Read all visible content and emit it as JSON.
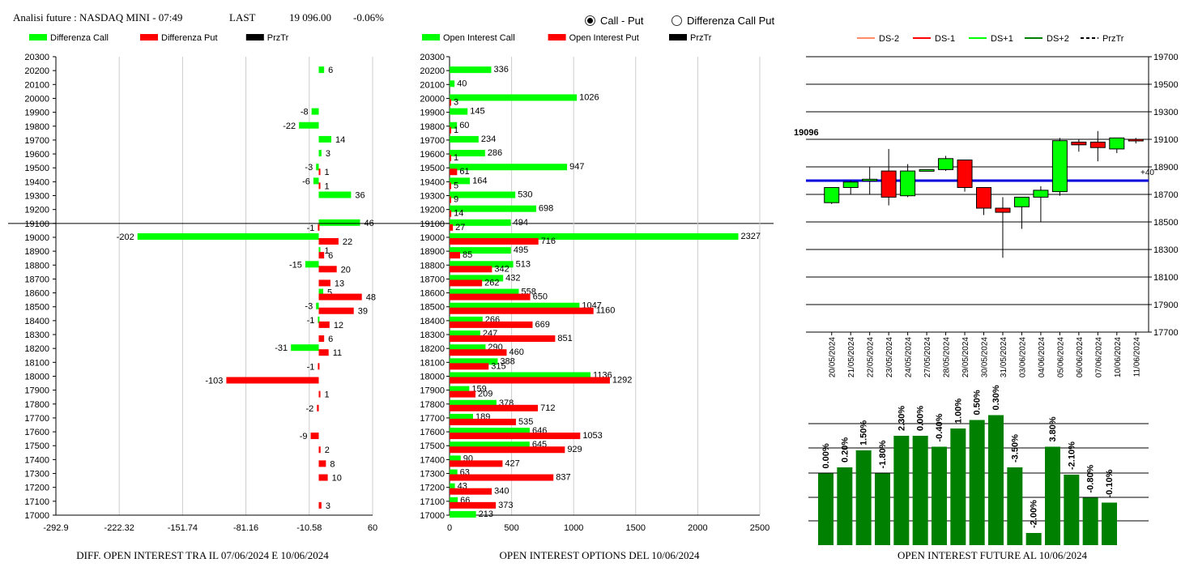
{
  "header": {
    "title": "Analisi future : NASDAQ MINI - 07:49",
    "last_label": "LAST",
    "last_value": "19 096.00",
    "change": "-0.06%"
  },
  "radio": {
    "option1": "Call - Put",
    "option2": "Differenza Call Put",
    "selected": 1
  },
  "colors": {
    "green": "#00ff00",
    "red": "#ff0000",
    "black": "#000000",
    "blue": "#0000dd",
    "darkgreen": "#008000"
  },
  "captions": {
    "left": "DIFF. OPEN INTEREST TRA IL 07/06/2024 E 10/06/2024",
    "middle": "OPEN INTEREST OPTIONS DEL 10/06/2024",
    "right": "OPEN INTEREST FUTURE AL 10/06/2024"
  },
  "chart_data": [
    {
      "type": "bar",
      "orientation": "horizontal",
      "legend": [
        "Differenza Call",
        "Differenza Put",
        "PrzTr"
      ],
      "categories": [
        "20300",
        "20200",
        "20100",
        "20000",
        "19900",
        "19800",
        "19700",
        "19600",
        "19500",
        "19400",
        "19300",
        "19200",
        "19100",
        "19000",
        "18900",
        "18800",
        "18700",
        "18600",
        "18500",
        "18400",
        "18300",
        "18200",
        "18100",
        "18000",
        "17900",
        "17800",
        "17700",
        "17600",
        "17500",
        "17400",
        "17300",
        "17200",
        "17100",
        "17000"
      ],
      "series": [
        {
          "name": "Differenza Call",
          "values": [
            null,
            6,
            null,
            null,
            -8,
            -22,
            14,
            3,
            -3,
            -6,
            36,
            null,
            46,
            -202,
            1,
            -15,
            null,
            5,
            -3,
            -1,
            null,
            -31,
            null,
            null,
            null,
            null,
            null,
            null,
            null,
            null,
            null,
            null,
            null,
            null
          ]
        },
        {
          "name": "Differenza Put",
          "values": [
            null,
            null,
            null,
            null,
            null,
            null,
            null,
            null,
            1,
            1,
            null,
            null,
            -1,
            22,
            6,
            20,
            13,
            48,
            39,
            12,
            6,
            11,
            -1,
            -103,
            1,
            -2,
            null,
            -9,
            2,
            8,
            10,
            null,
            3,
            null
          ]
        }
      ],
      "price_line": 19100,
      "xticks": [
        "-292.9",
        "-222.32",
        "-151.74",
        "-81.16",
        "-10.58",
        "60"
      ],
      "xlim": [
        -292.9,
        60
      ]
    },
    {
      "type": "bar",
      "orientation": "horizontal",
      "legend": [
        "Open Interest Call",
        "Open Interest Put",
        "PrzTr"
      ],
      "categories": [
        "20300",
        "20200",
        "20100",
        "20000",
        "19900",
        "19800",
        "19700",
        "19600",
        "19500",
        "19400",
        "19300",
        "19200",
        "19100",
        "19000",
        "18900",
        "18800",
        "18700",
        "18600",
        "18500",
        "18400",
        "18300",
        "18200",
        "18100",
        "18000",
        "17900",
        "17800",
        "17700",
        "17600",
        "17500",
        "17400",
        "17300",
        "17200",
        "17100",
        "17000"
      ],
      "series": [
        {
          "name": "Open Interest Call",
          "values": [
            null,
            336,
            40,
            1026,
            145,
            60,
            234,
            286,
            947,
            164,
            530,
            698,
            494,
            2327,
            495,
            513,
            432,
            558,
            1047,
            266,
            247,
            290,
            388,
            1136,
            159,
            378,
            189,
            646,
            645,
            90,
            63,
            43,
            66,
            213
          ]
        },
        {
          "name": "Open Interest Put",
          "values": [
            null,
            null,
            null,
            3,
            null,
            1,
            null,
            1,
            61,
            5,
            9,
            14,
            27,
            716,
            85,
            342,
            262,
            650,
            1160,
            669,
            851,
            460,
            315,
            1292,
            209,
            712,
            535,
            1053,
            929,
            427,
            837,
            340,
            373,
            null
          ]
        }
      ],
      "xticks": [
        "0",
        "500",
        "1000",
        "1500",
        "2000",
        "2500"
      ],
      "xlim": [
        0,
        2500
      ]
    },
    {
      "type": "candlestick",
      "legend": [
        "DS-2",
        "DS-1",
        "DS+1",
        "DS+2",
        "PrzTr"
      ],
      "current_label": "19096",
      "side_label": "+40",
      "ref_line": 18800,
      "yticks": [
        "19700",
        "19500",
        "19300",
        "19100",
        "18900",
        "18700",
        "18500",
        "18300",
        "18100",
        "17900",
        "17700"
      ],
      "ylim": [
        17700,
        19700
      ],
      "dates": [
        "20/05/2024",
        "21/05/2024",
        "22/05/2024",
        "23/05/2024",
        "24/05/2024",
        "27/05/2024",
        "28/05/2024",
        "29/05/2024",
        "30/05/2024",
        "31/05/2024",
        "03/06/2024",
        "04/06/2024",
        "05/06/2024",
        "06/06/2024",
        "07/06/2024",
        "10/06/2024",
        "11/06/2024"
      ],
      "ohlc": [
        [
          18640,
          18750,
          18630,
          18750
        ],
        [
          18750,
          18800,
          18700,
          18790
        ],
        [
          18810,
          18900,
          18700,
          18810
        ],
        [
          18870,
          19030,
          18620,
          18680
        ],
        [
          18690,
          18920,
          18680,
          18870
        ],
        [
          18880,
          18880,
          18880,
          18880
        ],
        [
          18880,
          18980,
          18870,
          18960
        ],
        [
          18950,
          18950,
          18720,
          18750
        ],
        [
          18750,
          18750,
          18550,
          18600
        ],
        [
          18600,
          18680,
          18240,
          18570
        ],
        [
          18610,
          18670,
          18450,
          18680
        ],
        [
          18680,
          18760,
          18500,
          18730
        ],
        [
          18720,
          19110,
          18690,
          19090
        ],
        [
          19080,
          19100,
          19010,
          19060
        ],
        [
          19080,
          19160,
          18940,
          19040
        ],
        [
          19030,
          19110,
          19000,
          19110
        ],
        [
          19100,
          19110,
          19070,
          19090
        ]
      ]
    },
    {
      "type": "bar",
      "labels": [
        "0.00%",
        "0.20%",
        "1.50%",
        "-1.80%",
        "2.30%",
        "0.00%",
        "-0.40%",
        "1.00%",
        "0.50%",
        "0.30%",
        "-3.50%",
        "-2.00%",
        "3.80%",
        "-2.10%",
        "-0.80%",
        "-0.10%"
      ],
      "values": [
        0.0,
        0.2,
        1.5,
        -1.8,
        2.3,
        0.0,
        -0.4,
        1.0,
        0.5,
        0.3,
        -3.5,
        -2.0,
        3.8,
        -2.1,
        -0.8,
        -0.1
      ],
      "levels": [
        0.59,
        0.64,
        0.78,
        0.59,
        0.9,
        0.9,
        0.81,
        0.96,
        1.03,
        1.07,
        0.64,
        0.1,
        0.81,
        0.58,
        0.39,
        0.35
      ]
    }
  ]
}
